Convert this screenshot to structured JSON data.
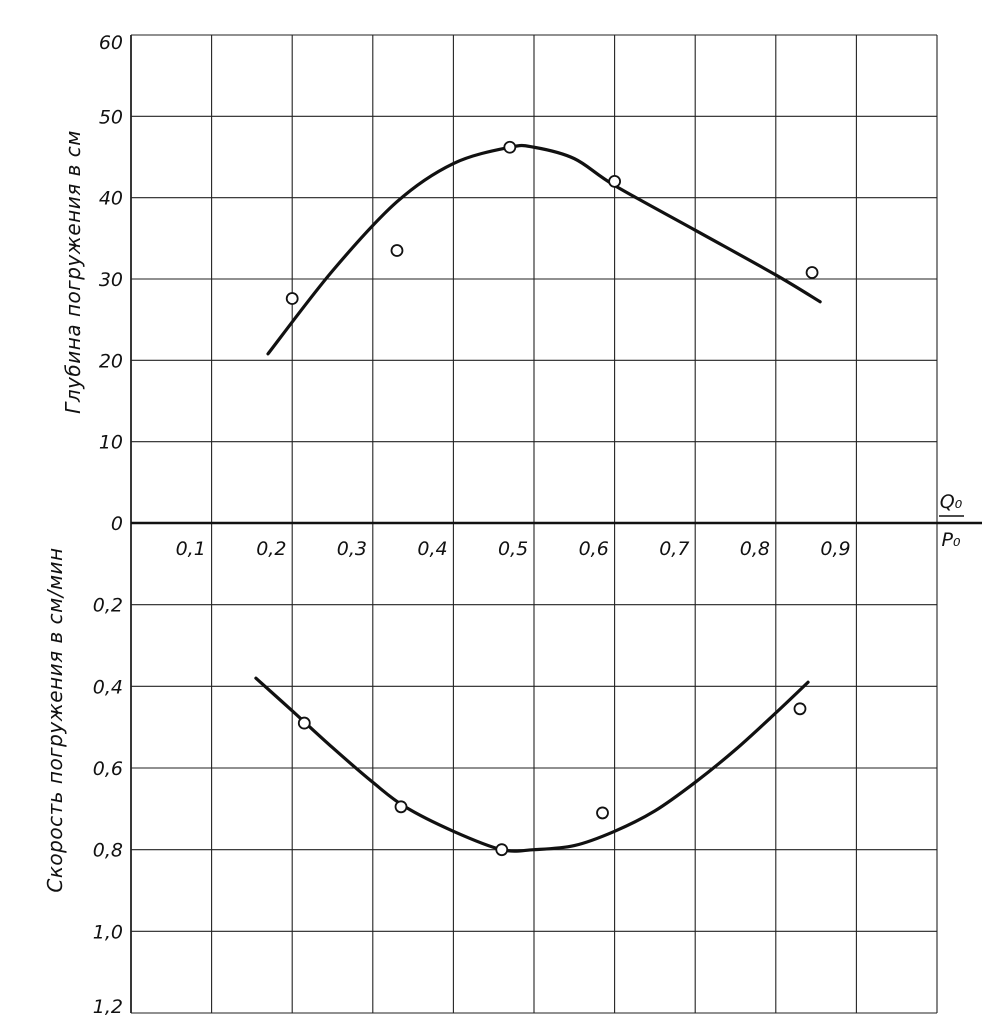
{
  "chart_data": [
    {
      "type": "scatter",
      "panel": "top",
      "title": "",
      "xlabel_numerator": "Q₀",
      "xlabel_denominator": "P₀",
      "ylabel": "Глубина погружения в см",
      "xlim": [
        0,
        1.0
      ],
      "ylim": [
        0,
        60
      ],
      "x_ticks": [
        "0,1",
        "0,2",
        "0,3",
        "0,4",
        "0,5",
        "0,6",
        "0,7",
        "0,8",
        "0,9"
      ],
      "y_ticks": [
        "0",
        "10",
        "20",
        "30",
        "40",
        "50",
        "60"
      ],
      "grid": true,
      "series": [
        {
          "kind": "points",
          "x": [
            0.2,
            0.33,
            0.47,
            0.6,
            0.845
          ],
          "y": [
            27.6,
            33.5,
            46.2,
            42,
            30.8
          ]
        },
        {
          "kind": "curve",
          "x": [
            0.17,
            0.25,
            0.33,
            0.4,
            0.47,
            0.5,
            0.55,
            0.6,
            0.7,
            0.8,
            0.855
          ],
          "y": [
            20.8,
            31,
            39.5,
            44.2,
            46.2,
            46.2,
            44.8,
            41.5,
            36,
            30.5,
            27.2
          ]
        }
      ]
    },
    {
      "type": "scatter",
      "panel": "bottom",
      "title": "",
      "ylabel": "Скорость погружения в см/мин",
      "xlim": [
        0,
        1.0
      ],
      "ylim": [
        0,
        1.2
      ],
      "y_inverted": true,
      "y_ticks": [
        "0,2",
        "0,4",
        "0,6",
        "0,8",
        "1,0",
        "1,2"
      ],
      "grid": true,
      "series": [
        {
          "kind": "points",
          "x": [
            0.215,
            0.335,
            0.46,
            0.585,
            0.83
          ],
          "y": [
            0.49,
            0.695,
            0.8,
            0.71,
            0.455
          ]
        },
        {
          "kind": "curve",
          "x": [
            0.155,
            0.2,
            0.25,
            0.3,
            0.34,
            0.4,
            0.46,
            0.5,
            0.55,
            0.6,
            0.65,
            0.7,
            0.75,
            0.8,
            0.84
          ],
          "y": [
            0.38,
            0.46,
            0.55,
            0.635,
            0.695,
            0.755,
            0.8,
            0.8,
            0.79,
            0.755,
            0.705,
            0.635,
            0.555,
            0.465,
            0.39
          ]
        }
      ]
    }
  ]
}
